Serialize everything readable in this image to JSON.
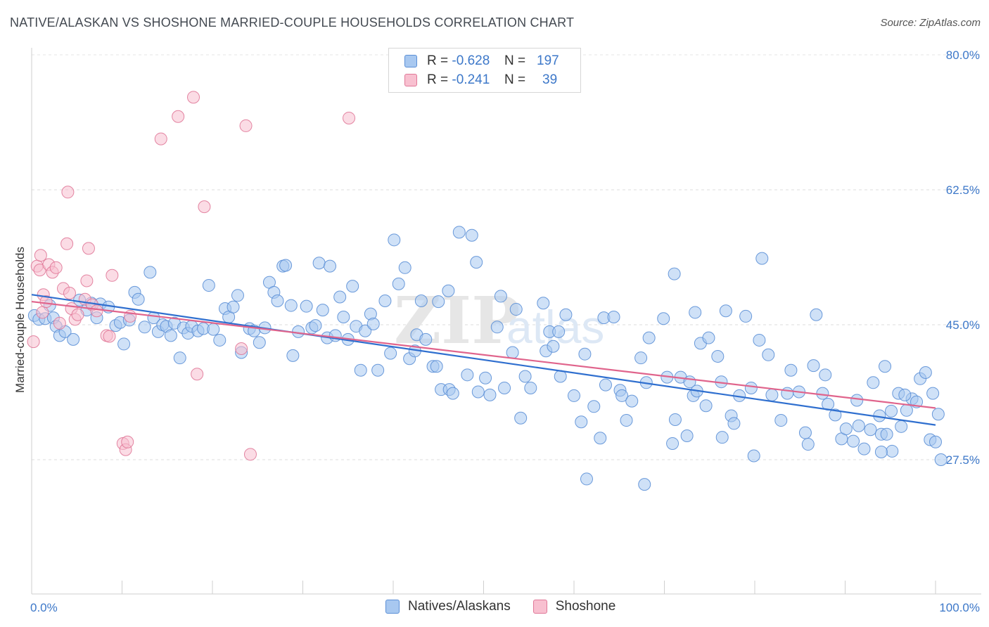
{
  "title": "NATIVE/ALASKAN VS SHOSHONE MARRIED-COUPLE HOUSEHOLDS CORRELATION CHART",
  "source": "Source: ZipAtlas.com",
  "watermark": {
    "zip": "ZIP",
    "atlas": "atlas"
  },
  "legend": {
    "rows": [
      {
        "r_label": "R =",
        "r_value": "-0.628",
        "n_label": "N =",
        "n_value": "197",
        "color": "#a8c8f0",
        "border": "#5b8fd6"
      },
      {
        "r_label": "R =",
        "r_value": "-0.241",
        "n_label": "N =",
        "n_value": "39",
        "color": "#f8c0d0",
        "border": "#e07898"
      }
    ]
  },
  "bottom_legend": [
    {
      "label": "Natives/Alaskans",
      "color": "#a8c8f0",
      "border": "#5b8fd6"
    },
    {
      "label": "Shoshone",
      "color": "#f8c0d0",
      "border": "#e07898"
    }
  ],
  "chart_data": {
    "type": "scatter",
    "title": "NATIVE/ALASKAN VS SHOSHONE MARRIED-COUPLE HOUSEHOLDS CORRELATION CHART",
    "xlabel": "",
    "ylabel": "Married-couple Households",
    "xlim": [
      0,
      100
    ],
    "ylim": [
      13.5,
      82
    ],
    "x_tick_labels": [
      "0.0%",
      "100.0%"
    ],
    "y_ticks": [
      27.5,
      45.0,
      62.5,
      80.0
    ],
    "y_tick_labels": [
      "27.5%",
      "45.0%",
      "62.5%",
      "80.0%"
    ],
    "grid": "horizontal dashed",
    "series": [
      {
        "name": "Natives/Alaskans",
        "color": "#a8c8f0",
        "stroke": "#5b8fd6",
        "trend": {
          "x": [
            0,
            100
          ],
          "y": [
            48.9,
            32.0
          ],
          "color": "#2f6fcf"
        },
        "points": [
          [
            0.3,
            46.2
          ],
          [
            0.8,
            45.7
          ],
          [
            1.5,
            45.8
          ],
          [
            2.0,
            47.5
          ],
          [
            2.4,
            45.9
          ],
          [
            2.7,
            44.8
          ],
          [
            3.1,
            43.6
          ],
          [
            3.7,
            44.1
          ],
          [
            4.6,
            43.1
          ],
          [
            5.3,
            48.2
          ],
          [
            6.1,
            46.9
          ],
          [
            6.6,
            47.8
          ],
          [
            7.2,
            45.9
          ],
          [
            7.6,
            47.7
          ],
          [
            8.5,
            47.3
          ],
          [
            9.3,
            44.9
          ],
          [
            9.8,
            45.3
          ],
          [
            10.2,
            42.5
          ],
          [
            10.8,
            45.6
          ],
          [
            11.4,
            49.2
          ],
          [
            11.8,
            48.3
          ],
          [
            12.5,
            44.7
          ],
          [
            13.1,
            51.8
          ],
          [
            13.5,
            45.9
          ],
          [
            14.0,
            44.1
          ],
          [
            14.5,
            45.0
          ],
          [
            14.9,
            44.8
          ],
          [
            15.4,
            43.6
          ],
          [
            15.8,
            45.2
          ],
          [
            16.4,
            40.7
          ],
          [
            16.8,
            44.6
          ],
          [
            17.3,
            43.9
          ],
          [
            17.7,
            44.8
          ],
          [
            18.4,
            44.2
          ],
          [
            19.0,
            44.5
          ],
          [
            19.6,
            50.1
          ],
          [
            20.1,
            44.4
          ],
          [
            20.8,
            43.0
          ],
          [
            21.4,
            47.1
          ],
          [
            21.8,
            46.0
          ],
          [
            22.3,
            47.3
          ],
          [
            22.8,
            48.8
          ],
          [
            23.2,
            41.4
          ],
          [
            24.1,
            44.5
          ],
          [
            24.6,
            44.2
          ],
          [
            25.2,
            42.7
          ],
          [
            25.8,
            44.6
          ],
          [
            26.3,
            50.5
          ],
          [
            26.8,
            49.2
          ],
          [
            27.2,
            48.1
          ],
          [
            27.8,
            52.6
          ],
          [
            28.1,
            52.7
          ],
          [
            28.7,
            47.5
          ],
          [
            28.9,
            41.0
          ],
          [
            29.5,
            44.1
          ],
          [
            30.4,
            47.4
          ],
          [
            31.0,
            44.6
          ],
          [
            31.4,
            44.9
          ],
          [
            31.8,
            53.0
          ],
          [
            32.2,
            46.9
          ],
          [
            32.7,
            43.3
          ],
          [
            33.0,
            52.6
          ],
          [
            33.6,
            43.6
          ],
          [
            34.1,
            48.6
          ],
          [
            34.5,
            46.0
          ],
          [
            35.0,
            43.1
          ],
          [
            35.5,
            50.0
          ],
          [
            35.9,
            44.8
          ],
          [
            36.4,
            39.1
          ],
          [
            36.9,
            44.2
          ],
          [
            37.5,
            46.4
          ],
          [
            37.8,
            45.1
          ],
          [
            38.3,
            39.1
          ],
          [
            39.1,
            48.1
          ],
          [
            39.7,
            41.3
          ],
          [
            40.1,
            56.0
          ],
          [
            40.6,
            50.3
          ],
          [
            41.3,
            52.4
          ],
          [
            41.8,
            40.6
          ],
          [
            42.4,
            41.6
          ],
          [
            42.6,
            43.7
          ],
          [
            43.1,
            48.1
          ],
          [
            43.6,
            43.1
          ],
          [
            44.4,
            39.6
          ],
          [
            44.8,
            39.6
          ],
          [
            45.0,
            48.0
          ],
          [
            45.3,
            36.6
          ],
          [
            46.1,
            49.4
          ],
          [
            46.2,
            36.6
          ],
          [
            46.6,
            36.1
          ],
          [
            47.3,
            57.0
          ],
          [
            48.2,
            38.5
          ],
          [
            48.7,
            56.6
          ],
          [
            49.2,
            53.1
          ],
          [
            49.4,
            36.3
          ],
          [
            50.2,
            38.1
          ],
          [
            50.7,
            35.9
          ],
          [
            51.5,
            44.7
          ],
          [
            51.9,
            48.7
          ],
          [
            52.3,
            36.8
          ],
          [
            53.2,
            41.4
          ],
          [
            53.6,
            47.0
          ],
          [
            54.1,
            32.9
          ],
          [
            54.6,
            38.3
          ],
          [
            55.2,
            36.8
          ],
          [
            56.6,
            47.8
          ],
          [
            56.9,
            41.6
          ],
          [
            57.3,
            44.1
          ],
          [
            57.7,
            42.2
          ],
          [
            58.3,
            44.1
          ],
          [
            58.5,
            38.3
          ],
          [
            59.1,
            46.3
          ],
          [
            60.0,
            35.8
          ],
          [
            60.8,
            32.4
          ],
          [
            61.4,
            25.0
          ],
          [
            62.2,
            34.4
          ],
          [
            62.9,
            30.3
          ],
          [
            63.3,
            45.9
          ],
          [
            63.5,
            37.2
          ],
          [
            64.4,
            46.0
          ],
          [
            65.1,
            36.5
          ],
          [
            65.3,
            35.8
          ],
          [
            65.8,
            32.6
          ],
          [
            66.4,
            35.1
          ],
          [
            67.4,
            40.7
          ],
          [
            67.8,
            24.3
          ],
          [
            68.0,
            37.5
          ],
          [
            68.3,
            43.3
          ],
          [
            69.9,
            45.8
          ],
          [
            70.3,
            38.2
          ],
          [
            70.9,
            29.6
          ],
          [
            71.1,
            51.6
          ],
          [
            71.2,
            32.7
          ],
          [
            71.8,
            38.2
          ],
          [
            72.5,
            30.6
          ],
          [
            72.8,
            37.6
          ],
          [
            73.2,
            35.8
          ],
          [
            73.4,
            46.6
          ],
          [
            73.6,
            36.4
          ],
          [
            74.0,
            42.6
          ],
          [
            74.6,
            34.5
          ],
          [
            74.9,
            43.3
          ],
          [
            75.9,
            40.9
          ],
          [
            76.3,
            37.6
          ],
          [
            76.4,
            30.4
          ],
          [
            76.8,
            46.8
          ],
          [
            77.4,
            33.2
          ],
          [
            77.7,
            32.2
          ],
          [
            78.3,
            35.8
          ],
          [
            79.0,
            46.1
          ],
          [
            79.6,
            36.8
          ],
          [
            79.9,
            28.0
          ],
          [
            80.5,
            43.0
          ],
          [
            80.8,
            53.6
          ],
          [
            81.5,
            41.1
          ],
          [
            81.9,
            35.9
          ],
          [
            82.9,
            32.6
          ],
          [
            83.6,
            36.1
          ],
          [
            84.0,
            39.1
          ],
          [
            84.9,
            36.3
          ],
          [
            85.6,
            31.0
          ],
          [
            85.9,
            29.5
          ],
          [
            86.5,
            39.7
          ],
          [
            86.8,
            46.3
          ],
          [
            87.5,
            36.1
          ],
          [
            87.8,
            38.5
          ],
          [
            88.1,
            34.7
          ],
          [
            88.9,
            33.3
          ],
          [
            89.6,
            30.2
          ],
          [
            90.1,
            31.5
          ],
          [
            90.9,
            29.9
          ],
          [
            91.3,
            35.2
          ],
          [
            91.5,
            31.9
          ],
          [
            92.1,
            28.9
          ],
          [
            92.8,
            31.4
          ],
          [
            93.1,
            37.5
          ],
          [
            93.8,
            33.2
          ],
          [
            94.0,
            30.8
          ],
          [
            94.4,
            39.6
          ],
          [
            94.6,
            30.8
          ],
          [
            95.2,
            28.6
          ],
          [
            95.9,
            36.1
          ],
          [
            96.2,
            31.8
          ],
          [
            96.8,
            33.9
          ],
          [
            97.4,
            35.4
          ],
          [
            97.9,
            35.0
          ],
          [
            98.3,
            38.0
          ],
          [
            98.9,
            38.8
          ],
          [
            99.4,
            30.1
          ],
          [
            100.0,
            29.8
          ],
          [
            100.3,
            33.4
          ],
          [
            100.6,
            27.5
          ],
          [
            99.7,
            36.1
          ],
          [
            96.6,
            35.9
          ],
          [
            95.1,
            33.8
          ],
          [
            94.0,
            28.5
          ],
          [
            61.2,
            41.2
          ]
        ]
      },
      {
        "name": "Shoshone",
        "color": "#f8c0d0",
        "stroke": "#e07898",
        "trend": {
          "x": [
            0,
            100
          ],
          "y": [
            48.0,
            34.2
          ],
          "color": "#e0648c"
        },
        "points": [
          [
            0.2,
            42.8
          ],
          [
            0.6,
            52.6
          ],
          [
            0.9,
            52.1
          ],
          [
            1.0,
            54.0
          ],
          [
            1.2,
            46.6
          ],
          [
            1.3,
            48.9
          ],
          [
            1.6,
            48.0
          ],
          [
            1.9,
            52.8
          ],
          [
            2.3,
            51.8
          ],
          [
            2.7,
            52.4
          ],
          [
            3.1,
            45.2
          ],
          [
            3.5,
            49.7
          ],
          [
            3.9,
            55.5
          ],
          [
            4.0,
            62.2
          ],
          [
            4.2,
            49.1
          ],
          [
            4.4,
            47.1
          ],
          [
            4.8,
            45.7
          ],
          [
            5.1,
            46.3
          ],
          [
            5.9,
            48.3
          ],
          [
            6.1,
            50.7
          ],
          [
            6.3,
            54.9
          ],
          [
            6.7,
            47.6
          ],
          [
            7.2,
            46.8
          ],
          [
            8.3,
            43.6
          ],
          [
            8.6,
            43.5
          ],
          [
            8.9,
            51.4
          ],
          [
            10.1,
            29.6
          ],
          [
            10.4,
            28.8
          ],
          [
            10.6,
            29.8
          ],
          [
            10.9,
            46.1
          ],
          [
            14.3,
            69.1
          ],
          [
            16.2,
            72.0
          ],
          [
            17.9,
            74.5
          ],
          [
            18.3,
            38.6
          ],
          [
            19.1,
            60.3
          ],
          [
            23.2,
            41.9
          ],
          [
            23.7,
            70.8
          ],
          [
            24.2,
            28.2
          ],
          [
            35.1,
            71.8
          ]
        ]
      }
    ]
  }
}
